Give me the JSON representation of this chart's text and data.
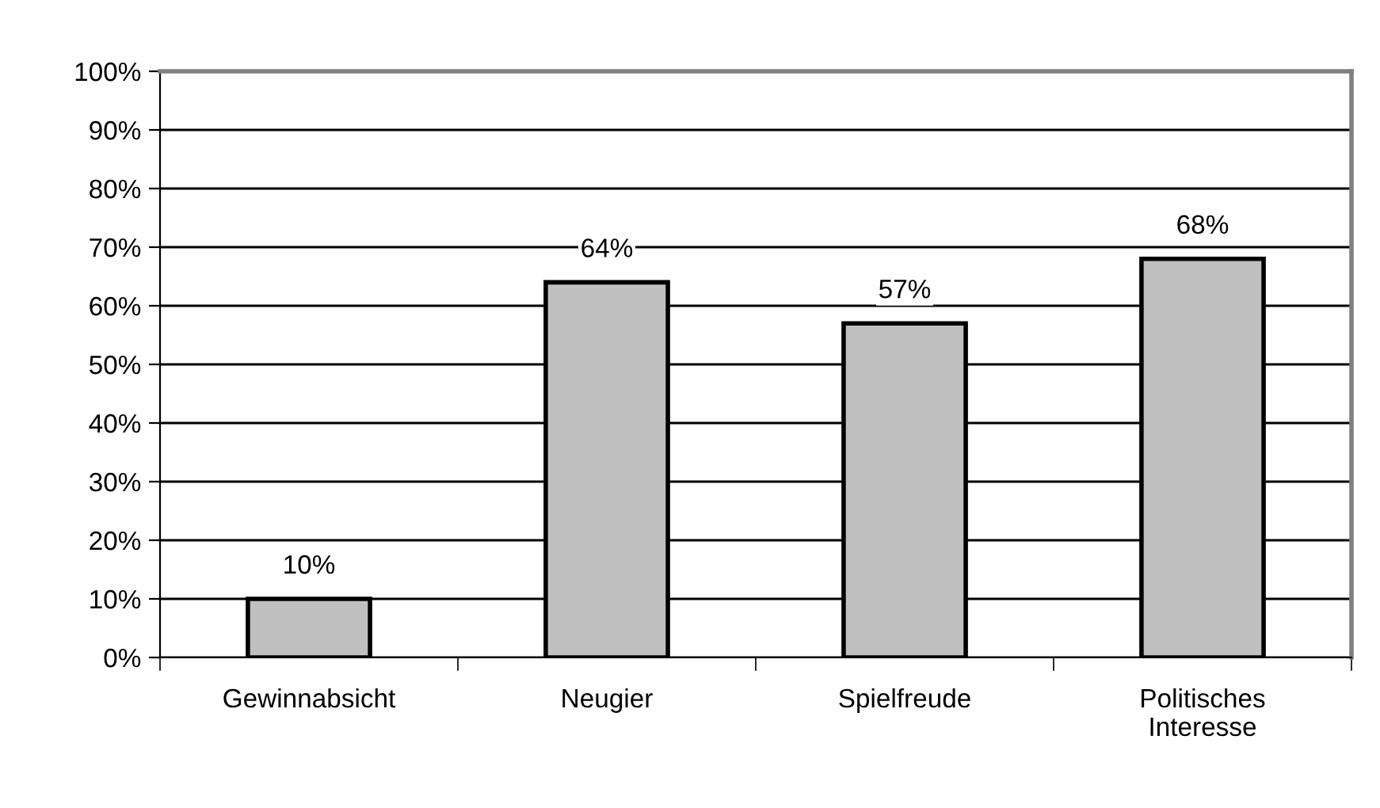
{
  "chart_data": {
    "type": "bar",
    "categories": [
      "Gewinnabsicht",
      "Neugier",
      "Spielfreude",
      "Politisches\nInteresse"
    ],
    "values": [
      10,
      64,
      57,
      68
    ],
    "value_labels": [
      "10%",
      "64%",
      "57%",
      "68%"
    ],
    "color": "#c0c0c0",
    "ylim": [
      0,
      100
    ],
    "yticks": [
      {
        "value": 0,
        "label": "0%"
      },
      {
        "value": 10,
        "label": "10%"
      },
      {
        "value": 20,
        "label": "20%"
      },
      {
        "value": 30,
        "label": "30%"
      },
      {
        "value": 40,
        "label": "40%"
      },
      {
        "value": 50,
        "label": "50%"
      },
      {
        "value": 60,
        "label": "60%"
      },
      {
        "value": 70,
        "label": "70%"
      },
      {
        "value": 80,
        "label": "80%"
      },
      {
        "value": 90,
        "label": "90%"
      },
      {
        "value": 100,
        "label": "100%"
      }
    ],
    "grid": "y",
    "legend": false
  }
}
